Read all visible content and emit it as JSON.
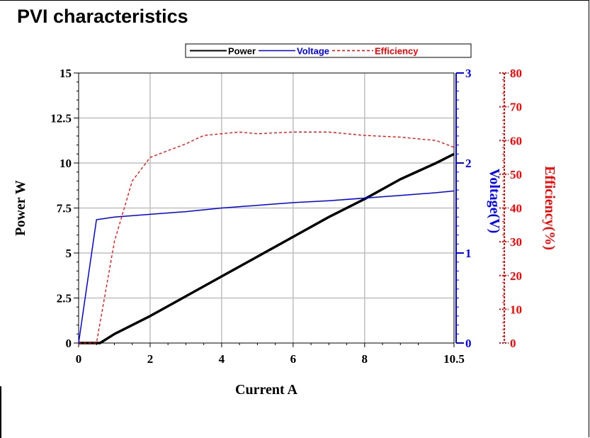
{
  "page_title": "PVI characteristics",
  "chart_data": {
    "type": "line",
    "title": "PVI characteristics",
    "xlabel": "Current A",
    "x_ticks": [
      "0",
      "2",
      "4",
      "6",
      "8",
      "10.5"
    ],
    "xlim": [
      0,
      10.5
    ],
    "grid": true,
    "legend_placement": "top",
    "axes": [
      {
        "id": "power",
        "label": "Power W",
        "side": "left",
        "ylim": [
          0,
          15
        ],
        "ticks": [
          "0",
          "2.5",
          "5",
          "7.5",
          "10",
          "12.5",
          "15"
        ],
        "color": "#000000"
      },
      {
        "id": "voltage",
        "label": "Voltage(V)",
        "side": "right",
        "ylim": [
          0,
          3
        ],
        "ticks": [
          "0",
          "1",
          "2",
          "3"
        ],
        "color": "#0000ff"
      },
      {
        "id": "efficiency",
        "label": "Efficiency(%)",
        "side": "right-outer",
        "ylim": [
          0,
          80
        ],
        "ticks": [
          "0",
          "10",
          "20",
          "30",
          "40",
          "50",
          "60",
          "70",
          "80"
        ],
        "color": "#ff0000"
      }
    ],
    "series": [
      {
        "name": "Power",
        "axis": "power",
        "color": "#000000",
        "style": "solid",
        "x": [
          0,
          0.6,
          1,
          2,
          3,
          4,
          5,
          6,
          7,
          8,
          9,
          10,
          10.5
        ],
        "y": [
          0,
          0,
          0.5,
          1.5,
          2.6,
          3.7,
          4.8,
          5.9,
          7.0,
          8.0,
          9.1,
          10.0,
          10.5
        ]
      },
      {
        "name": "Voltage",
        "axis": "voltage",
        "color": "#0000ff",
        "style": "solid",
        "x": [
          0,
          0.5,
          1,
          2,
          3,
          4,
          5,
          6,
          7,
          8,
          9,
          10,
          10.5
        ],
        "y": [
          0,
          1.37,
          1.4,
          1.43,
          1.46,
          1.5,
          1.53,
          1.56,
          1.58,
          1.61,
          1.64,
          1.67,
          1.69
        ]
      },
      {
        "name": "Efficiency",
        "axis": "efficiency",
        "color": "#ff0000",
        "style": "dashed",
        "x": [
          0,
          0.5,
          0.8,
          1,
          1.5,
          2,
          2.5,
          3,
          3.5,
          4,
          4.5,
          5,
          6,
          7,
          8,
          9,
          10,
          10.5
        ],
        "y": [
          0,
          0,
          18,
          30,
          48,
          55,
          57,
          59,
          61.5,
          62,
          62.5,
          62,
          62.5,
          62.5,
          61.5,
          61,
          60,
          58
        ]
      }
    ]
  }
}
